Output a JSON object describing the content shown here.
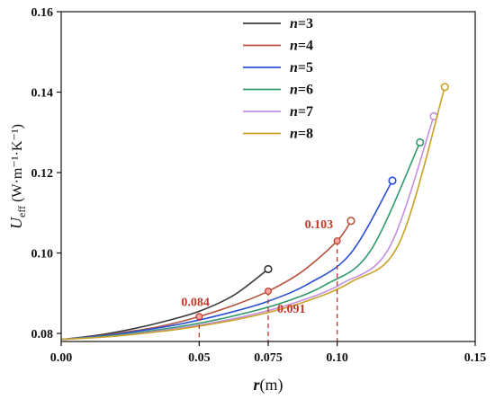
{
  "chart_data": {
    "type": "line",
    "xlabel": "r(m)",
    "ylabel": "U_eff (W·m⁻¹·K⁻¹)",
    "xlim": [
      0.0,
      0.15
    ],
    "ylim": [
      0.078,
      0.16
    ],
    "x_ticks": [
      0.0,
      0.05,
      0.075,
      0.1,
      0.15
    ],
    "x_tick_labels": [
      "0.00",
      "0.05",
      "0.075",
      "0.10",
      "0.15"
    ],
    "y_ticks": [
      0.08,
      0.1,
      0.12,
      0.14,
      0.16
    ],
    "y_tick_labels": [
      "0.08",
      "0.10",
      "0.12",
      "0.14",
      "0.16"
    ],
    "legend_position": "top-center",
    "series": [
      {
        "name": "n=3",
        "n_label": "n",
        "n_value": "=3",
        "color": "#3a3a3a",
        "x": [
          0.0,
          0.0125,
          0.025,
          0.0375,
          0.05,
          0.0625,
          0.075
        ],
        "y": [
          0.0785,
          0.0795,
          0.081,
          0.083,
          0.0855,
          0.0895,
          0.096
        ]
      },
      {
        "name": "n=4",
        "n_label": "n",
        "n_value": "=4",
        "color": "#b5533c",
        "x": [
          0.0,
          0.0125,
          0.025,
          0.0375,
          0.05,
          0.0625,
          0.075,
          0.0875,
          0.1,
          0.105
        ],
        "y": [
          0.0785,
          0.0793,
          0.0805,
          0.082,
          0.0842,
          0.087,
          0.0905,
          0.0955,
          0.103,
          0.108
        ]
      },
      {
        "name": "n=5",
        "n_label": "n",
        "n_value": "=5",
        "color": "#2a4fd6",
        "x": [
          0.0,
          0.015,
          0.03,
          0.045,
          0.06,
          0.075,
          0.09,
          0.105,
          0.12
        ],
        "y": [
          0.0785,
          0.0794,
          0.0808,
          0.0826,
          0.085,
          0.088,
          0.0925,
          0.1,
          0.118
        ]
      },
      {
        "name": "n=6",
        "n_label": "n",
        "n_value": "=6",
        "color": "#2e9a6b",
        "x": [
          0.0,
          0.016,
          0.032,
          0.048,
          0.064,
          0.08,
          0.096,
          0.112,
          0.13
        ],
        "y": [
          0.0785,
          0.0793,
          0.0806,
          0.0823,
          0.0846,
          0.0876,
          0.0922,
          0.1005,
          0.1275
        ]
      },
      {
        "name": "n=7",
        "n_label": "n",
        "n_value": "=7",
        "color": "#c48fe0",
        "x": [
          0.0,
          0.017,
          0.034,
          0.051,
          0.068,
          0.085,
          0.102,
          0.119,
          0.135
        ],
        "y": [
          0.0785,
          0.0792,
          0.0805,
          0.0822,
          0.0845,
          0.0877,
          0.0925,
          0.1015,
          0.134
        ]
      },
      {
        "name": "n=8",
        "n_label": "n",
        "n_value": "=8",
        "color": "#c9a227",
        "x": [
          0.0,
          0.0175,
          0.035,
          0.0525,
          0.07,
          0.0875,
          0.105,
          0.1225,
          0.139
        ],
        "y": [
          0.0785,
          0.0792,
          0.0804,
          0.0821,
          0.0844,
          0.0877,
          0.0928,
          0.1025,
          0.1413
        ]
      }
    ],
    "annotations": [
      {
        "text": "0.084",
        "x": 0.05,
        "y": 0.0842,
        "color": "#c0392b"
      },
      {
        "text": "0.091",
        "x": 0.075,
        "y": 0.0905,
        "color": "#c0392b"
      },
      {
        "text": "0.103",
        "x": 0.1,
        "y": 0.103,
        "color": "#c0392b"
      }
    ],
    "reference_lines": {
      "color": "#c0392b",
      "x": [
        0.05,
        0.075,
        0.1
      ]
    },
    "axis_color": "#111111"
  }
}
